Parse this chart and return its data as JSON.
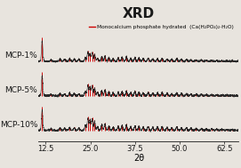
{
  "title": "XRD",
  "xlabel": "2θ",
  "legend_label": "Monocalcium phosphate hydrated  (Ca(H₂PO₄)₂·H₂O)",
  "xlim": [
    10.5,
    66.5
  ],
  "xticks": [
    12.5,
    25.0,
    37.5,
    50.0,
    62.5
  ],
  "xtick_labels": [
    "12.5",
    "25.0",
    "37.5",
    "50.0",
    "62.5"
  ],
  "series_labels": [
    "MCP-1%",
    "MCP-5%",
    "MCP-10%"
  ],
  "offsets": [
    1.6,
    0.8,
    0.0
  ],
  "background_color": "#e8e4de",
  "red_color": "#cc0000",
  "black_color": "#1a1a1a",
  "title_fontsize": 11,
  "label_fontsize": 6.5,
  "tick_fontsize": 6,
  "ylim": [
    -0.25,
    2.55
  ],
  "ref_peaks": [
    11.5,
    14.0,
    16.5,
    17.8,
    19.2,
    20.5,
    21.8,
    23.6,
    24.3,
    24.9,
    25.5,
    26.2,
    27.0,
    28.2,
    29.1,
    30.2,
    31.4,
    32.8,
    33.9,
    35.1,
    36.3,
    37.5,
    38.6,
    39.8,
    41.2,
    42.5,
    43.8,
    45.1,
    46.5,
    47.8,
    49.2,
    50.5,
    51.9,
    53.2,
    54.6,
    56.1,
    57.5,
    59.0,
    60.4,
    61.8,
    63.2,
    64.7
  ],
  "ref_heights_1": [
    0.55,
    0.04,
    0.06,
    0.05,
    0.07,
    0.06,
    0.05,
    0.1,
    0.25,
    0.2,
    0.22,
    0.18,
    0.08,
    0.12,
    0.14,
    0.1,
    0.07,
    0.09,
    0.11,
    0.12,
    0.08,
    0.1,
    0.09,
    0.07,
    0.08,
    0.06,
    0.07,
    0.08,
    0.06,
    0.05,
    0.07,
    0.05,
    0.04,
    0.04,
    0.03,
    0.03,
    0.02,
    0.02,
    0.02,
    0.01,
    0.01,
    0.01
  ],
  "ref_heights_2": [
    0.55,
    0.04,
    0.06,
    0.05,
    0.07,
    0.06,
    0.05,
    0.12,
    0.28,
    0.24,
    0.26,
    0.2,
    0.09,
    0.14,
    0.16,
    0.11,
    0.08,
    0.1,
    0.12,
    0.13,
    0.09,
    0.11,
    0.1,
    0.08,
    0.09,
    0.07,
    0.08,
    0.09,
    0.07,
    0.06,
    0.08,
    0.06,
    0.05,
    0.05,
    0.04,
    0.04,
    0.03,
    0.03,
    0.03,
    0.02,
    0.02,
    0.01
  ],
  "ref_heights_3": [
    0.55,
    0.05,
    0.07,
    0.06,
    0.08,
    0.07,
    0.06,
    0.14,
    0.32,
    0.28,
    0.3,
    0.23,
    0.1,
    0.16,
    0.18,
    0.12,
    0.09,
    0.11,
    0.13,
    0.15,
    0.1,
    0.12,
    0.11,
    0.09,
    0.1,
    0.08,
    0.09,
    0.1,
    0.08,
    0.07,
    0.09,
    0.07,
    0.06,
    0.06,
    0.05,
    0.05,
    0.04,
    0.04,
    0.03,
    0.03,
    0.02,
    0.02
  ]
}
